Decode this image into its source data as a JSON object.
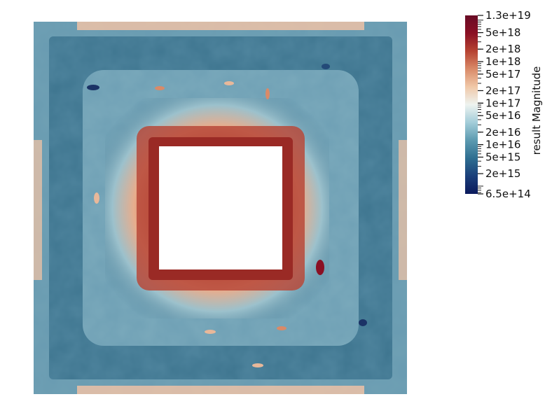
{
  "colorbar": {
    "title": "result Magnitude",
    "scale": "log",
    "range": [
      "6.5e+14",
      "1.3e+19"
    ],
    "colormap": [
      "#0b1a5c",
      "#1b3f7a",
      "#2f6f91",
      "#5c9ab0",
      "#a3cdd9",
      "#eef3f0",
      "#f0c8a8",
      "#d98a68",
      "#b64332",
      "#8a1024",
      "#680b25"
    ],
    "labels": [
      "1.3e+19",
      "5e+18",
      "2e+18",
      "1e+18",
      "5e+17",
      "2e+17",
      "1e+17",
      "5e+16",
      "2e+16",
      "1e+16",
      "5e+15",
      "2e+15",
      "6.5e+14"
    ]
  },
  "field": {
    "palette": {
      "low": "#2f5f7a",
      "mid": "#7fb0c2",
      "edge": "#e6c3a7",
      "high": "#b34636",
      "hole": "#ffffff"
    }
  }
}
